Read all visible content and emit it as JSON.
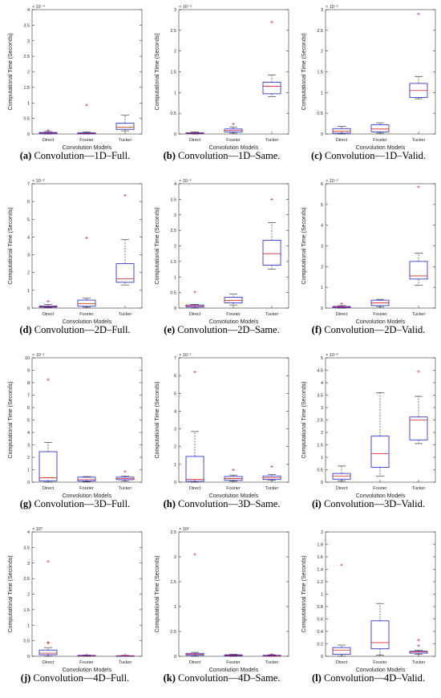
{
  "chart_data": [
    {
      "type": "box",
      "caption_letter": "(a)",
      "caption_text": "Convolution—1D–Full.",
      "multiplier": "× 10⁻⁴",
      "ylabel": "Computational Time (Seconds)",
      "xlabel": "Convolution Models",
      "categories": [
        "Direct",
        "Fourier",
        "Tucker"
      ],
      "ylim": [
        0,
        4
      ],
      "ticks": [
        0,
        0.5,
        1,
        1.5,
        2,
        2.5,
        3,
        3.5,
        4
      ],
      "tick_labels": [
        "0",
        "0.5",
        "1",
        "1.5",
        "2",
        "2.5",
        "3",
        "3.5",
        "4"
      ],
      "boxes": [
        {
          "min": 0,
          "q1": 0.01,
          "median": 0.03,
          "q3": 0.05,
          "max": 0.08,
          "outliers": [
            0.12
          ]
        },
        {
          "min": 0,
          "q1": 0.005,
          "median": 0.02,
          "q3": 0.04,
          "max": 0.06,
          "outliers": [
            0.93
          ]
        },
        {
          "min": 0.1,
          "q1": 0.15,
          "median": 0.22,
          "q3": 0.35,
          "max": 0.6,
          "outliers": []
        }
      ]
    },
    {
      "type": "box",
      "caption_letter": "(b)",
      "caption_text": "Convolution—1D–Same.",
      "multiplier": "× 10⁻²",
      "ylabel": "Computational Time (Seconds)",
      "xlabel": "Convolution Models",
      "categories": [
        "Direct",
        "Fourier",
        "Tucker"
      ],
      "ylim": [
        0,
        3
      ],
      "ticks": [
        0,
        0.5,
        1,
        1.5,
        2,
        2.5,
        3
      ],
      "tick_labels": [
        "0",
        "0.5",
        "1",
        "1.5",
        "2",
        "2.5",
        "3"
      ],
      "boxes": [
        {
          "min": 0,
          "q1": 0.01,
          "median": 0.02,
          "q3": 0.03,
          "max": 0.05,
          "outliers": []
        },
        {
          "min": 0.02,
          "q1": 0.05,
          "median": 0.09,
          "q3": 0.12,
          "max": 0.17,
          "outliers": [
            0.24
          ]
        },
        {
          "min": 0.9,
          "q1": 0.97,
          "median": 1.15,
          "q3": 1.25,
          "max": 1.42,
          "outliers": [
            2.7
          ]
        }
      ]
    },
    {
      "type": "box",
      "caption_letter": "(c)",
      "caption_text": "Convolution—1D–Valid.",
      "multiplier": "× 10⁻²",
      "ylabel": "Computational Time (Seconds)",
      "xlabel": "Convolution Models",
      "categories": [
        "Direct",
        "Fourier",
        "Tucker"
      ],
      "ylim": [
        0,
        3
      ],
      "ticks": [
        0,
        0.5,
        1,
        1.5,
        2,
        2.5,
        3
      ],
      "tick_labels": [
        "0",
        "0.5",
        "1",
        "1.5",
        "2",
        "2.5",
        "3"
      ],
      "boxes": [
        {
          "min": 0,
          "q1": 0.02,
          "median": 0.07,
          "q3": 0.13,
          "max": 0.18,
          "outliers": []
        },
        {
          "min": 0.02,
          "q1": 0.05,
          "median": 0.12,
          "q3": 0.22,
          "max": 0.27,
          "outliers": []
        },
        {
          "min": 0.85,
          "q1": 0.88,
          "median": 1.05,
          "q3": 1.22,
          "max": 1.38,
          "outliers": [
            2.9
          ]
        }
      ]
    },
    {
      "type": "box",
      "caption_letter": "(d)",
      "caption_text": "Convolution—2D–Full.",
      "multiplier": "× 10⁻²",
      "ylabel": "Computational Time (Seconds)",
      "xlabel": "Convolution Models",
      "categories": [
        "Direct",
        "Fourier",
        "Tucker"
      ],
      "ylim": [
        0,
        7
      ],
      "ticks": [
        0,
        1,
        2,
        3,
        4,
        5,
        6,
        7
      ],
      "tick_labels": [
        "0",
        "1",
        "2",
        "3",
        "4",
        "5",
        "6",
        "7"
      ],
      "boxes": [
        {
          "min": 0.02,
          "q1": 0.05,
          "median": 0.08,
          "q3": 0.12,
          "max": 0.2,
          "outliers": [
            0.38
          ]
        },
        {
          "min": 0.05,
          "q1": 0.1,
          "median": 0.25,
          "q3": 0.45,
          "max": 0.55,
          "outliers": [
            3.95
          ]
        },
        {
          "min": 1.3,
          "q1": 1.45,
          "median": 1.65,
          "q3": 2.5,
          "max": 3.85,
          "outliers": [
            6.35
          ]
        }
      ]
    },
    {
      "type": "box",
      "caption_letter": "(e)",
      "caption_text": "Convolution—2D–Same.",
      "multiplier": "× 10⁻²",
      "ylabel": "Computational Time (Seconds)",
      "xlabel": "Convolution Models",
      "categories": [
        "Direct",
        "Fourier",
        "Tucker"
      ],
      "ylim": [
        0,
        4
      ],
      "ticks": [
        0,
        0.5,
        1,
        1.5,
        2,
        2.5,
        3,
        3.5,
        4
      ],
      "tick_labels": [
        "0",
        "0.5",
        "1",
        "1.5",
        "2",
        "2.5",
        "3",
        "3.5",
        "4"
      ],
      "boxes": [
        {
          "min": 0,
          "q1": 0.03,
          "median": 0.07,
          "q3": 0.1,
          "max": 0.12,
          "outliers": [
            0.52
          ]
        },
        {
          "min": 0.1,
          "q1": 0.17,
          "median": 0.25,
          "q3": 0.35,
          "max": 0.45,
          "outliers": []
        },
        {
          "min": 1.25,
          "q1": 1.38,
          "median": 1.75,
          "q3": 2.18,
          "max": 2.75,
          "outliers": [
            3.5
          ]
        }
      ]
    },
    {
      "type": "box",
      "caption_letter": "(f)",
      "caption_text": "Convolution—2D–Valid.",
      "multiplier": "× 10⁻²",
      "ylabel": "Computational Time (Seconds)",
      "xlabel": "Convolution Models",
      "categories": [
        "Direct",
        "Fourier",
        "Tucker"
      ],
      "ylim": [
        0,
        6
      ],
      "ticks": [
        0,
        1,
        2,
        3,
        4,
        5,
        6
      ],
      "tick_labels": [
        "0",
        "1",
        "2",
        "3",
        "4",
        "5",
        "6"
      ],
      "boxes": [
        {
          "min": 0,
          "q1": 0.02,
          "median": 0.05,
          "q3": 0.08,
          "max": 0.12,
          "outliers": [
            0.22
          ]
        },
        {
          "min": 0.05,
          "q1": 0.12,
          "median": 0.25,
          "q3": 0.38,
          "max": 0.42,
          "outliers": []
        },
        {
          "min": 1.1,
          "q1": 1.4,
          "median": 1.55,
          "q3": 2.25,
          "max": 2.65,
          "outliers": [
            5.85
          ]
        }
      ]
    },
    {
      "type": "box",
      "caption_letter": "(g)",
      "caption_text": "Convolution—3D–Full.",
      "multiplier": "× 10⁻¹",
      "ylabel": "Computational Time (Seconds)",
      "xlabel": "Convolution Models",
      "categories": [
        "Direct",
        "Fourier",
        "Tucker"
      ],
      "ylim": [
        0,
        10
      ],
      "ticks": [
        0,
        1,
        2,
        3,
        4,
        5,
        6,
        7,
        8,
        9,
        10
      ],
      "tick_labels": [
        "0",
        "1",
        "2",
        "3",
        "4",
        "5",
        "6",
        "7",
        "8",
        "9",
        "10"
      ],
      "boxes": [
        {
          "min": 0,
          "q1": 0.1,
          "median": 0.35,
          "q3": 2.45,
          "max": 3.2,
          "outliers": [
            8.25
          ]
        },
        {
          "min": 0.05,
          "q1": 0.1,
          "median": 0.2,
          "q3": 0.4,
          "max": 0.45,
          "outliers": []
        },
        {
          "min": 0.1,
          "q1": 0.2,
          "median": 0.3,
          "q3": 0.4,
          "max": 0.5,
          "outliers": [
            0.85
          ]
        }
      ]
    },
    {
      "type": "box",
      "caption_letter": "(h)",
      "caption_text": "Convolution—3D–Same.",
      "multiplier": "× 10⁻¹",
      "ylabel": "Computational Time (Seconds)",
      "xlabel": "Convolution Models",
      "categories": [
        "Direct",
        "Fourier",
        "Tucker"
      ],
      "ylim": [
        0,
        7
      ],
      "ticks": [
        0,
        1,
        2,
        3,
        4,
        5,
        6,
        7
      ],
      "tick_labels": [
        "0",
        "1",
        "2",
        "3",
        "4",
        "5",
        "6",
        "7"
      ],
      "boxes": [
        {
          "min": 0,
          "q1": 0.05,
          "median": 0.15,
          "q3": 1.45,
          "max": 2.85,
          "outliers": [
            6.2
          ]
        },
        {
          "min": 0.05,
          "q1": 0.1,
          "median": 0.2,
          "q3": 0.32,
          "max": 0.4,
          "outliers": [
            0.7
          ]
        },
        {
          "min": 0.1,
          "q1": 0.15,
          "median": 0.25,
          "q3": 0.35,
          "max": 0.42,
          "outliers": [
            0.88
          ]
        }
      ]
    },
    {
      "type": "box",
      "caption_letter": "(i)",
      "caption_text": "Convolution—3D–Valid.",
      "multiplier": "× 10⁻²",
      "ylabel": "Computational Time (Seconds)",
      "xlabel": "Convolution Models",
      "categories": [
        "Direct",
        "Fourier",
        "Tucker"
      ],
      "ylim": [
        0,
        5
      ],
      "ticks": [
        0,
        0.5,
        1,
        1.5,
        2,
        2.5,
        3,
        3.5,
        4,
        4.5,
        5
      ],
      "tick_labels": [
        "0",
        "0.5",
        "1",
        "1.5",
        "2",
        "2.5",
        "3",
        "3.5",
        "4",
        "4.5",
        "5"
      ],
      "boxes": [
        {
          "min": 0.05,
          "q1": 0.12,
          "median": 0.25,
          "q3": 0.35,
          "max": 0.65,
          "outliers": []
        },
        {
          "min": 0.25,
          "q1": 0.6,
          "median": 1.15,
          "q3": 1.85,
          "max": 3.6,
          "outliers": []
        },
        {
          "min": 1.55,
          "q1": 1.7,
          "median": 2.5,
          "q3": 2.62,
          "max": 3.45,
          "outliers": [
            4.45
          ]
        }
      ]
    },
    {
      "type": "box",
      "caption_letter": "(j)",
      "caption_text": "Convolution—4D–Full.",
      "multiplier": "× 10²",
      "ylabel": "Computational Time (Seconds)",
      "xlabel": "Convolution Models",
      "categories": [
        "Direct",
        "Fourier",
        "Tucker"
      ],
      "ylim": [
        0,
        4
      ],
      "ticks": [
        0,
        0.5,
        1,
        1.5,
        2,
        2.5,
        3,
        3.5,
        4
      ],
      "tick_labels": [
        "0",
        "0.5",
        "1",
        "1.5",
        "2",
        "2.5",
        "3",
        "3.5",
        "4"
      ],
      "boxes": [
        {
          "min": 0,
          "q1": 0.05,
          "median": 0.1,
          "q3": 0.2,
          "max": 0.28,
          "outliers": [
            0.42,
            0.45,
            3.05
          ]
        },
        {
          "min": 0,
          "q1": 0.01,
          "median": 0.02,
          "q3": 0.03,
          "max": 0.04,
          "outliers": []
        },
        {
          "min": 0,
          "q1": 0.005,
          "median": 0.01,
          "q3": 0.02,
          "max": 0.03,
          "outliers": []
        }
      ]
    },
    {
      "type": "box",
      "caption_letter": "(k)",
      "caption_text": "Convolution—4D–Same.",
      "multiplier": "× 10²",
      "ylabel": "Computational Time (Seconds)",
      "xlabel": "Convolution Models",
      "categories": [
        "Direct",
        "Fourier",
        "Tucker"
      ],
      "ylim": [
        0,
        2.5
      ],
      "ticks": [
        0,
        0.5,
        1,
        1.5,
        2,
        2.5
      ],
      "tick_labels": [
        "0",
        "0.5",
        "1",
        "1.5",
        "2",
        "2.5"
      ],
      "boxes": [
        {
          "min": 0,
          "q1": 0.02,
          "median": 0.04,
          "q3": 0.06,
          "max": 0.08,
          "outliers": [
            2.05
          ]
        },
        {
          "min": 0,
          "q1": 0.01,
          "median": 0.02,
          "q3": 0.03,
          "max": 0.04,
          "outliers": []
        },
        {
          "min": 0,
          "q1": 0.005,
          "median": 0.01,
          "q3": 0.02,
          "max": 0.03,
          "outliers": [
            0.04
          ]
        }
      ]
    },
    {
      "type": "box",
      "caption_letter": "(l)",
      "caption_text": "Convolution—4D–Valid.",
      "multiplier": "",
      "ylabel": "Computational Time (Seconds)",
      "xlabel": "Convolution Models",
      "categories": [
        "Direct",
        "Fourier",
        "Tucker"
      ],
      "ylim": [
        0,
        2
      ],
      "ticks": [
        0,
        0.2,
        0.4,
        0.6,
        0.8,
        1,
        1.2,
        1.4,
        1.6,
        1.8,
        2
      ],
      "tick_labels": [
        "0",
        "0.2",
        "0.4",
        "0.6",
        "0.8",
        "1",
        "1.2",
        "1.4",
        "1.6",
        "1.8",
        "2"
      ],
      "boxes": [
        {
          "min": 0,
          "q1": 0.03,
          "median": 0.1,
          "q3": 0.14,
          "max": 0.18,
          "outliers": [
            1.47
          ]
        },
        {
          "min": 0.02,
          "q1": 0.12,
          "median": 0.22,
          "q3": 0.57,
          "max": 0.85,
          "outliers": []
        },
        {
          "min": 0.03,
          "q1": 0.05,
          "median": 0.07,
          "q3": 0.08,
          "max": 0.1,
          "outliers": [
            0.17,
            0.26
          ]
        }
      ]
    }
  ],
  "colors": {
    "box": "#1f1fd6",
    "median": "#e02020",
    "outlier": "#e02020",
    "whisker": "#222222"
  }
}
